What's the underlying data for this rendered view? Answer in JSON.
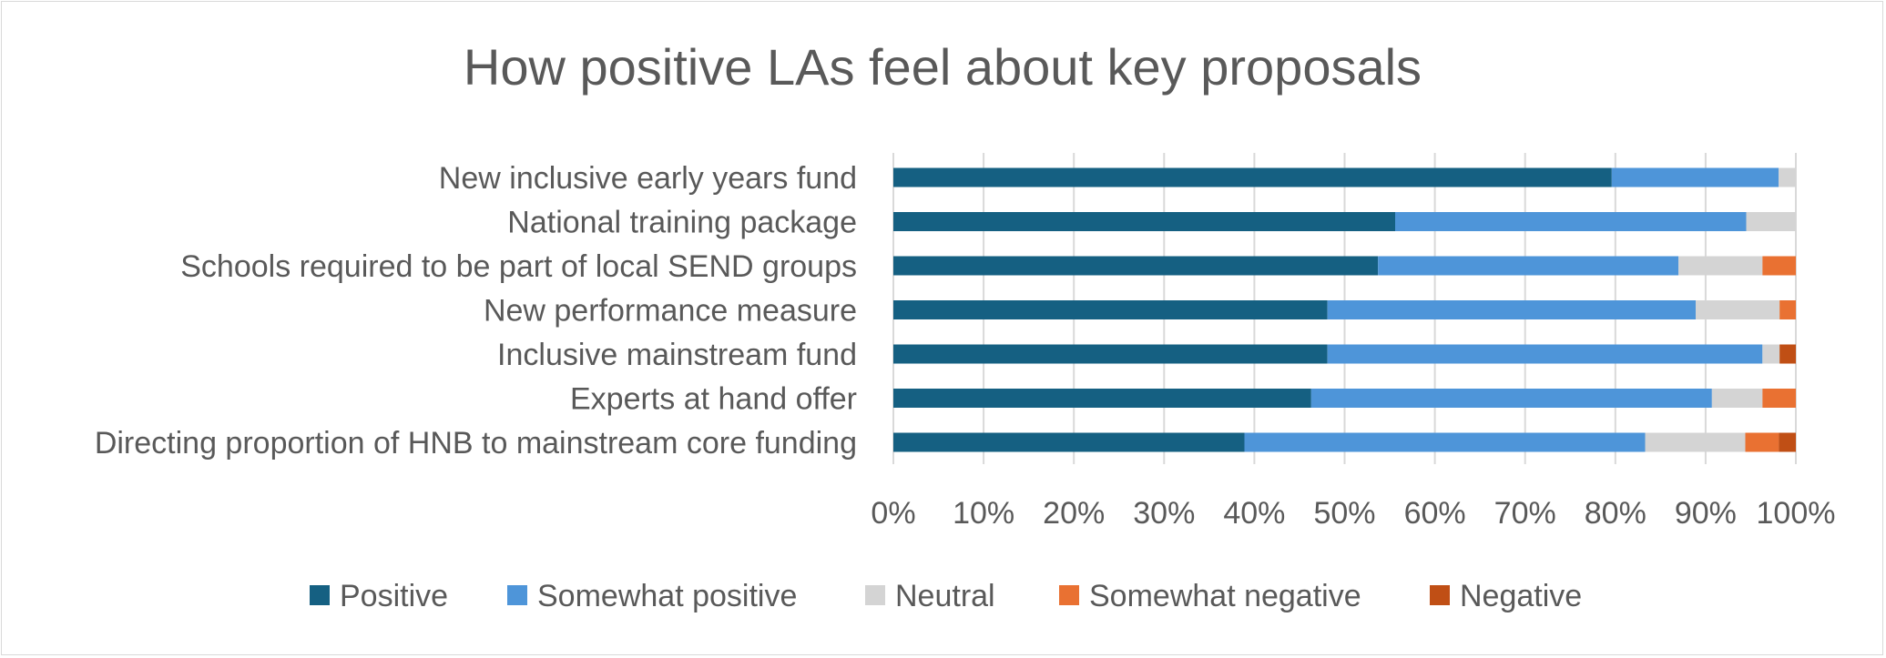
{
  "chart_data": {
    "type": "bar",
    "orientation": "horizontal",
    "stacked": "percent",
    "title": "How positive LAs feel about key proposals",
    "xlabel": "",
    "ylabel": "",
    "xlim": [
      0,
      100
    ],
    "x_ticks": [
      "0%",
      "10%",
      "20%",
      "30%",
      "40%",
      "50%",
      "60%",
      "70%",
      "80%",
      "90%",
      "100%"
    ],
    "grid": "vertical",
    "legend_position": "bottom",
    "categories": [
      "New inclusive early years fund",
      "National training package",
      "Schools required to be part of local SEND groups",
      "New performance measure ",
      "Inclusive mainstream fund",
      "Experts at hand offer",
      "Directing proportion of HNB to mainstream core funding"
    ],
    "series": [
      {
        "name": "Positive",
        "color": "#156082",
        "values": [
          79.6,
          55.6,
          53.7,
          48.1,
          48.1,
          46.3,
          38.9
        ]
      },
      {
        "name": "Somewhat positive",
        "color": "#4e95d9",
        "values": [
          18.5,
          38.9,
          33.3,
          40.8,
          48.2,
          44.4,
          44.4
        ]
      },
      {
        "name": "Neutral",
        "color": "#d4d4d4",
        "values": [
          1.9,
          5.5,
          9.3,
          9.3,
          1.9,
          5.6,
          11.1
        ]
      },
      {
        "name": "Somewhat negative",
        "color": "#e97132",
        "values": [
          0,
          0,
          3.7,
          1.8,
          0,
          3.7,
          3.7
        ]
      },
      {
        "name": "Negative",
        "color": "#c04f15",
        "values": [
          0,
          0,
          0,
          0,
          1.8,
          0,
          1.9
        ]
      }
    ]
  }
}
